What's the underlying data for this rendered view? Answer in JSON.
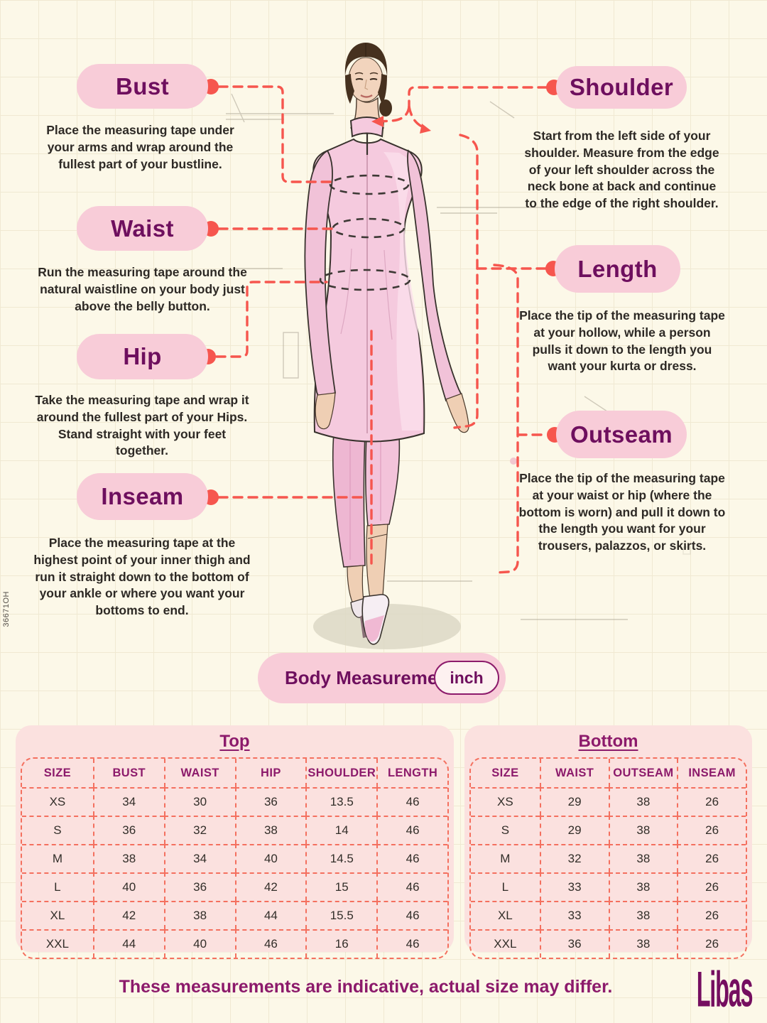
{
  "colors": {
    "background": "#FCF8E8",
    "pill_pink": "#F8CCD8",
    "table_pink": "#FBE1DF",
    "accent_purple": "#6E0F5E",
    "accent_red": "#F6564E",
    "dashed_coral": "#F4705F"
  },
  "sku": "36671OH",
  "measurements": [
    {
      "title": "Bust",
      "description": "Place the measuring tape under your arms and wrap around the fullest part of your bustline."
    },
    {
      "title": "Waist",
      "description": "Run the measuring tape around the natural waistline on your body just above the belly button."
    },
    {
      "title": "Hip",
      "description": "Take the measuring tape and wrap it around the fullest part of your Hips. Stand straight with your feet together."
    },
    {
      "title": "Inseam",
      "description": "Place the measuring tape at the highest point of your inner thigh and run it straight down to the bottom of your ankle or where you want your bottoms to end."
    },
    {
      "title": "Shoulder",
      "description": "Start from the left side of your shoulder. Measure from the edge of your left shoulder across the neck bone at back and continue to the edge of the right shoulder."
    },
    {
      "title": "Length",
      "description": "Place the tip of the measuring tape at your hollow, while a person pulls it down to the length you want your kurta or dress."
    },
    {
      "title": "Outseam",
      "description": "Place the tip of the measuring tape at your waist or hip (where the bottom is worn) and pull it down to the length you want for your trousers, palazzos, or skirts."
    }
  ],
  "body_measurement": {
    "label": "Body Measurement",
    "unit": "inch"
  },
  "size_tables": {
    "top": {
      "title": "Top",
      "headers": [
        "SIZE",
        "BUST",
        "WAIST",
        "HIP",
        "SHOULDER",
        "LENGTH"
      ],
      "rows": [
        [
          "XS",
          "34",
          "30",
          "36",
          "13.5",
          "46"
        ],
        [
          "S",
          "36",
          "32",
          "38",
          "14",
          "46"
        ],
        [
          "M",
          "38",
          "34",
          "40",
          "14.5",
          "46"
        ],
        [
          "L",
          "40",
          "36",
          "42",
          "15",
          "46"
        ],
        [
          "XL",
          "42",
          "38",
          "44",
          "15.5",
          "46"
        ],
        [
          "XXL",
          "44",
          "40",
          "46",
          "16",
          "46"
        ]
      ]
    },
    "bottom": {
      "title": "Bottom",
      "headers": [
        "SIZE",
        "WAIST",
        "OUTSEAM",
        "INSEAM"
      ],
      "rows": [
        [
          "XS",
          "29",
          "38",
          "26"
        ],
        [
          "S",
          "29",
          "38",
          "26"
        ],
        [
          "M",
          "32",
          "38",
          "26"
        ],
        [
          "L",
          "33",
          "38",
          "26"
        ],
        [
          "XL",
          "33",
          "38",
          "26"
        ],
        [
          "XXL",
          "36",
          "38",
          "26"
        ]
      ]
    }
  },
  "footer": {
    "note": "These measurements are indicative, actual size may differ.",
    "brand": "Libas"
  }
}
